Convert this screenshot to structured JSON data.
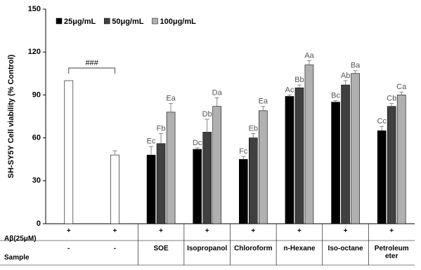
{
  "chart_data": {
    "type": "bar",
    "ylabel": "SH-SY5Y Cell  viability (% Control)",
    "ylim": [
      0,
      150
    ],
    "yticks": [
      0,
      30,
      60,
      90,
      120,
      150
    ],
    "annotation": "###",
    "row_labels": [
      "Aβ(25μM)",
      "Sample"
    ],
    "treatment": [
      "+",
      "+",
      "+",
      "+",
      "+",
      "+",
      "+",
      "+"
    ],
    "categories": [
      "-",
      "-",
      "SOE",
      "Isopropanol",
      "Chloroform",
      "n-Hexane",
      "Iso-octane",
      "Petroleum eter"
    ],
    "series": [
      {
        "color": "#ffffff",
        "values": [
          100,
          48,
          null,
          null,
          null,
          null,
          null,
          null
        ],
        "errors": [
          null,
          3,
          null,
          null,
          null,
          null,
          null,
          null
        ]
      },
      {
        "name": "25μg/mL",
        "color": "#000000",
        "values": [
          null,
          null,
          48,
          52,
          45,
          89,
          85,
          65
        ],
        "errors": [
          null,
          null,
          6,
          1,
          2,
          1,
          1,
          3
        ],
        "letters": [
          null,
          null,
          "Ec",
          "Dc",
          "Fc",
          "Ac",
          "Bc",
          "Cc"
        ]
      },
      {
        "name": "50μg/mL",
        "color": "#404040",
        "values": [
          null,
          null,
          56,
          64,
          60,
          95,
          97,
          82
        ],
        "errors": [
          null,
          null,
          7,
          9,
          3,
          2,
          3,
          2
        ],
        "letters": [
          null,
          null,
          "Fb",
          "Db",
          "Eb",
          "Bb",
          "Ab",
          "Cb"
        ]
      },
      {
        "name": "100μg/mL",
        "color": "#b0b0b0",
        "values": [
          null,
          null,
          78,
          82,
          79,
          111,
          105,
          90
        ],
        "errors": [
          null,
          null,
          6,
          6,
          3,
          3,
          2,
          2
        ],
        "letters": [
          null,
          null,
          "Ea",
          "Da",
          "Ea",
          "Aa",
          "Ba",
          "Ca"
        ]
      }
    ]
  }
}
